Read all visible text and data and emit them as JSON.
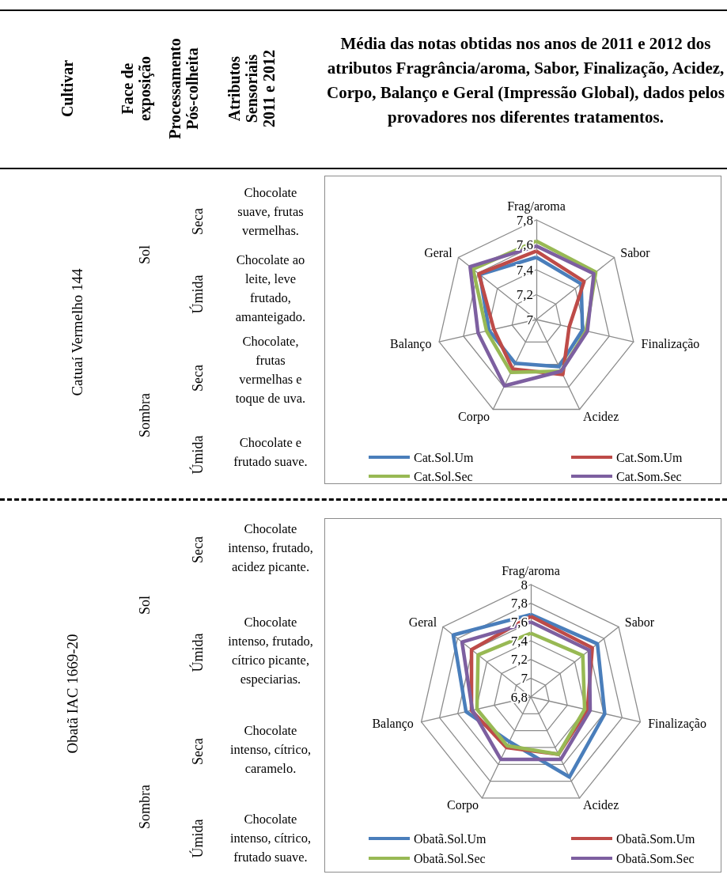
{
  "chart_data": [
    {
      "type": "other",
      "title": "Média das notas obtidas nos anos de 2011 e 2012 dos atributos Fragrância/aroma, Sabor, Finalização, Acidez, Corpo, Balanço e Geral (Impressão Global), dados pelos provadores nos diferentes tratamentos.",
      "annotations": [
        "Cultivar",
        "Face de\nexposição",
        "Processamento\nPós-colheita",
        "Atributos\nSensoriais\n2011 e 2012"
      ]
    },
    {
      "type": "other",
      "annotations": [
        "Catuaí Vermelho 144",
        "Sol",
        "Sombra",
        "Seca",
        "Úmida",
        "Seca",
        "Úmida",
        "Chocolate suave, frutas vermelhas.",
        "Chocolate ao leite, leve frutado, amanteigado.",
        "Chocolate, frutas vermelhas e toque de uva.",
        "Chocolate e frutado suave."
      ]
    },
    {
      "type": "radar",
      "categories": [
        "Frag/aroma",
        "Sabor",
        "Finalização",
        "Acidez",
        "Corpo",
        "Balanço",
        "Geral"
      ],
      "ylim": [
        7,
        7.8
      ],
      "yticks": [
        {
          "value": 7,
          "label": "7"
        },
        {
          "value": 7.2,
          "label": "7,2"
        },
        {
          "value": 7.4,
          "label": "7,4"
        },
        {
          "value": 7.6,
          "label": "7,6"
        },
        {
          "value": 7.8,
          "label": "7,8"
        }
      ],
      "marker": "none",
      "legend": "bottom",
      "series": [
        {
          "name": "Cat.Sol.Um",
          "color": "#4a7ebb",
          "values": [
            7.5,
            7.46,
            7.38,
            7.42,
            7.39,
            7.39,
            7.58
          ]
        },
        {
          "name": "Cat.Som.Um",
          "color": "#be4b48",
          "values": [
            7.55,
            7.49,
            7.27,
            7.49,
            7.44,
            7.35,
            7.59
          ]
        },
        {
          "name": "Cat.Sol.Sec",
          "color": "#98b954",
          "values": [
            7.63,
            7.61,
            7.41,
            7.46,
            7.47,
            7.41,
            7.65
          ]
        },
        {
          "name": "Cat.Som.Sec",
          "color": "#7d5fa0",
          "values": [
            7.59,
            7.59,
            7.42,
            7.46,
            7.59,
            7.48,
            7.68
          ]
        }
      ]
    },
    {
      "type": "other",
      "annotations": [
        "Obatã IAC 1669-20",
        "Sol",
        "Sombra",
        "Seca",
        "Úmida",
        "Seca",
        "Úmida",
        "Chocolate intenso, frutado, acidez picante.",
        "Chocolate intenso, frutado, cítrico picante, especiarias.",
        "Chocolate intenso, cítrico, caramelo.",
        "Chocolate intenso, cítrico, frutado suave."
      ]
    },
    {
      "type": "radar",
      "categories": [
        "Frag/aroma",
        "Sabor",
        "Finalização",
        "Acidez",
        "Corpo",
        "Balanço",
        "Geral"
      ],
      "ylim": [
        6.8,
        8
      ],
      "yticks": [
        {
          "value": 6.8,
          "label": "6,8"
        },
        {
          "value": 7,
          "label": "7"
        },
        {
          "value": 7.2,
          "label": "7,2"
        },
        {
          "value": 7.4,
          "label": "7,4"
        },
        {
          "value": 7.6,
          "label": "7,6"
        },
        {
          "value": 7.8,
          "label": "7,8"
        },
        {
          "value": 8,
          "label": "8"
        }
      ],
      "marker": "none",
      "legend": "bottom",
      "series": [
        {
          "name": "Obatã.Sol.Um",
          "color": "#4a7ebb",
          "values": [
            7.68,
            7.71,
            7.61,
            7.75,
            7.33,
            7.51,
            7.86
          ]
        },
        {
          "name": "Obatã.Som.Um",
          "color": "#be4b48",
          "values": [
            7.66,
            7.64,
            7.42,
            7.48,
            7.4,
            7.45,
            7.61
          ]
        },
        {
          "name": "Obatã.Sol.Sec",
          "color": "#98b954",
          "values": [
            7.48,
            7.51,
            7.39,
            7.48,
            7.38,
            7.39,
            7.52
          ]
        },
        {
          "name": "Obatã.Som.Sec",
          "color": "#7d5fa0",
          "values": [
            7.6,
            7.6,
            7.45,
            7.54,
            7.54,
            7.44,
            7.74
          ]
        }
      ]
    }
  ]
}
